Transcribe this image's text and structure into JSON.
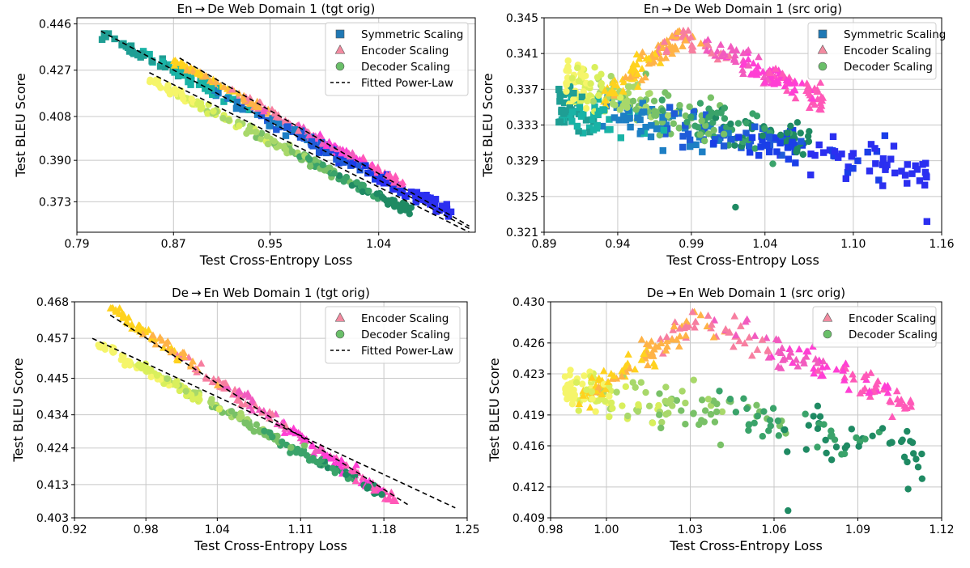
{
  "chart_data": [
    {
      "type": "scatter",
      "title": "En → De Web Domain 1 (tgt orig)",
      "xlabel": "Test Cross-Entropy Loss",
      "ylabel": "Test BLEU Score",
      "xlim": [
        0.79,
        1.12
      ],
      "ylim": [
        0.3605,
        0.4485
      ],
      "xticks": [
        "0.79",
        "0.87",
        "0.95",
        "1.04"
      ],
      "xtick_values": [
        0.79,
        0.87,
        0.95,
        1.04
      ],
      "yticks": [
        "0.373",
        "0.390",
        "0.408",
        "0.427",
        "0.446"
      ],
      "ytick_values": [
        0.373,
        0.39,
        0.408,
        0.427,
        0.446
      ],
      "grid": true,
      "legend_position": "top-right",
      "legend": [
        "Symmetric Scaling",
        "Encoder Scaling",
        "Decoder Scaling",
        "Fitted Power-Law"
      ],
      "series": [
        {
          "name": "Symmetric Scaling",
          "marker": "square",
          "x_range": [
            0.81,
            1.105
          ],
          "y_range": [
            0.367,
            0.442
          ],
          "trend": "decreasing"
        },
        {
          "name": "Encoder Scaling",
          "marker": "triangle",
          "x_range": [
            0.87,
            1.06
          ],
          "y_range": [
            0.38,
            0.431
          ],
          "trend": "decreasing"
        },
        {
          "name": "Decoder Scaling",
          "marker": "circle",
          "x_range": [
            0.85,
            1.07
          ],
          "y_range": [
            0.368,
            0.423
          ],
          "trend": "decreasing"
        }
      ],
      "fitted_lines": [
        {
          "name": "Fitted Power-Law",
          "points": [
            [
              0.81,
              0.443
            ],
            [
              1.115,
              0.362
            ]
          ]
        },
        {
          "name": "Fitted Power-Law",
          "points": [
            [
              0.85,
              0.426
            ],
            [
              1.115,
              0.3605
            ]
          ]
        },
        {
          "name": "Fitted Power-Law",
          "points": [
            [
              0.875,
              0.432
            ],
            [
              1.115,
              0.363
            ]
          ]
        }
      ]
    },
    {
      "type": "scatter",
      "title": "En → De Web Domain 1 (src orig)",
      "xlabel": "Test Cross-Entropy Loss",
      "ylabel": "Test BLEU Score",
      "xlim": [
        0.89,
        1.16
      ],
      "ylim": [
        0.321,
        0.345
      ],
      "xticks": [
        "0.89",
        "0.94",
        "0.99",
        "1.04",
        "1.10",
        "1.16"
      ],
      "xtick_values": [
        0.89,
        0.94,
        0.99,
        1.04,
        1.1,
        1.16
      ],
      "yticks": [
        "0.321",
        "0.325",
        "0.329",
        "0.333",
        "0.337",
        "0.341",
        "0.345"
      ],
      "ytick_values": [
        0.321,
        0.325,
        0.329,
        0.333,
        0.337,
        0.341,
        0.345
      ],
      "grid": true,
      "legend_position": "top-right",
      "legend": [
        "Symmetric Scaling",
        "Encoder Scaling",
        "Decoder Scaling"
      ],
      "series": [
        {
          "name": "Symmetric Scaling",
          "marker": "square",
          "x_range": [
            0.9,
            1.15
          ],
          "y_range": [
            0.322,
            0.341
          ],
          "outliers": [
            [
              1.15,
              0.3222
            ],
            [
              1.12,
              0.3262
            ],
            [
              1.095,
              0.327
            ]
          ]
        },
        {
          "name": "Encoder Scaling",
          "marker": "triangle",
          "x_range": [
            0.93,
            1.08
          ],
          "y_range": [
            0.329,
            0.344
          ],
          "trend": "hump"
        },
        {
          "name": "Decoder Scaling",
          "marker": "circle",
          "x_range": [
            0.905,
            1.07
          ],
          "y_range": [
            0.324,
            0.344
          ],
          "outliers": [
            [
              1.02,
              0.3238
            ]
          ]
        }
      ]
    },
    {
      "type": "scatter",
      "title": "De → En Web Domain 1 (tgt orig)",
      "xlabel": "Test Cross-Entropy Loss",
      "ylabel": "Test BLEU Score",
      "xlim": [
        0.92,
        1.25
      ],
      "ylim": [
        0.403,
        0.468
      ],
      "xticks": [
        "0.92",
        "0.98",
        "1.04",
        "1.11",
        "1.18",
        "1.25"
      ],
      "xtick_values": [
        0.92,
        0.98,
        1.04,
        1.11,
        1.18,
        1.25
      ],
      "yticks": [
        "0.403",
        "0.413",
        "0.424",
        "0.434",
        "0.445",
        "0.457",
        "0.468"
      ],
      "ytick_values": [
        0.403,
        0.413,
        0.424,
        0.434,
        0.445,
        0.457,
        0.468
      ],
      "grid": true,
      "legend_position": "top-right",
      "legend": [
        "Encoder Scaling",
        "Decoder Scaling",
        "Fitted Power-Law"
      ],
      "series": [
        {
          "name": "Encoder Scaling",
          "marker": "triangle",
          "x_range": [
            0.95,
            1.19
          ],
          "y_range": [
            0.408,
            0.466
          ],
          "trend": "decreasing"
        },
        {
          "name": "Decoder Scaling",
          "marker": "circle",
          "x_range": [
            0.94,
            1.18
          ],
          "y_range": [
            0.41,
            0.455
          ],
          "trend": "decreasing"
        }
      ],
      "fitted_lines": [
        {
          "name": "Fitted Power-Law",
          "points": [
            [
              0.95,
              0.464
            ],
            [
              1.2,
              0.407
            ]
          ]
        },
        {
          "name": "Fitted Power-Law",
          "points": [
            [
              0.935,
              0.457
            ],
            [
              1.24,
              0.406
            ]
          ]
        }
      ]
    },
    {
      "type": "scatter",
      "title": "De → En Web Domain 1 (src orig)",
      "xlabel": "Test Cross-Entropy Loss",
      "ylabel": "Test BLEU Score",
      "xlim": [
        0.98,
        1.12
      ],
      "ylim": [
        0.409,
        0.43
      ],
      "xticks": [
        "0.98",
        "1.00",
        "1.03",
        "1.06",
        "1.09",
        "1.12"
      ],
      "xtick_values": [
        0.98,
        1.0,
        1.03,
        1.06,
        1.09,
        1.12
      ],
      "yticks": [
        "0.409",
        "0.412",
        "0.416",
        "0.419",
        "0.423",
        "0.426",
        "0.430"
      ],
      "ytick_values": [
        0.409,
        0.412,
        0.416,
        0.419,
        0.423,
        0.426,
        0.43
      ],
      "grid": true,
      "legend_position": "top-right",
      "legend": [
        "Encoder Scaling",
        "Decoder Scaling"
      ],
      "series": [
        {
          "name": "Encoder Scaling",
          "marker": "triangle",
          "x_range": [
            0.99,
            1.11
          ],
          "y_range": [
            0.413,
            0.429
          ],
          "trend": "hump"
        },
        {
          "name": "Decoder Scaling",
          "marker": "circle",
          "x_range": [
            0.985,
            1.113
          ],
          "y_range": [
            0.4095,
            0.4275
          ],
          "outliers": [
            [
              1.113,
              0.4128
            ],
            [
              1.108,
              0.4118
            ],
            [
              1.065,
              0.4097
            ]
          ]
        }
      ]
    }
  ],
  "marker_palettes": {
    "Symmetric Scaling": [
      "#1f9e94",
      "#19b3a6",
      "#1d7fc4",
      "#1f5bd8",
      "#1a3ee8",
      "#2b2ff0"
    ],
    "Encoder Scaling": [
      "#ffd21e",
      "#ffb347",
      "#f77ea0",
      "#f25bbf",
      "#ff3fd4",
      "#ff59b8"
    ],
    "Decoder Scaling": [
      "#f5f56a",
      "#d9ef5c",
      "#a8d86a",
      "#79c167",
      "#3aa36a",
      "#1f8a63"
    ]
  },
  "legend_colors": {
    "Symmetric Scaling": "#1f78b4",
    "Encoder Scaling": "#f28aa0",
    "Decoder Scaling": "#6abf69",
    "Fitted Power-Law": "#000000"
  }
}
